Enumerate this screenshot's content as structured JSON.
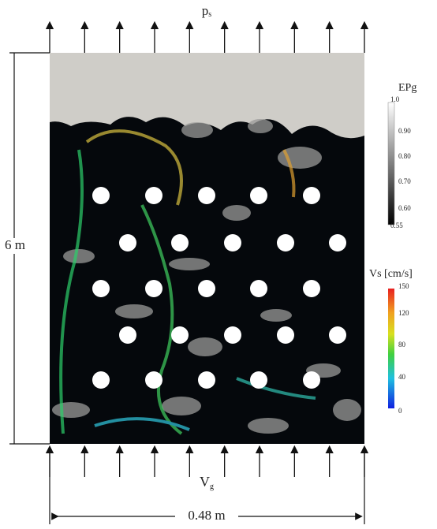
{
  "labels": {
    "top": {
      "main": "p",
      "sub": "s"
    },
    "bottom": {
      "main": "V",
      "sub": "g"
    },
    "height": "6 m",
    "width": "0.48 m"
  },
  "colorbars": [
    {
      "title": "EPg",
      "ticks": [
        "1.0",
        "0.90",
        "0.80",
        "0.70",
        "0.60",
        "0.55"
      ]
    },
    {
      "title": "Vs [cm/s]",
      "ticks": [
        "150",
        "120",
        "80",
        "40",
        "0"
      ]
    }
  ]
}
